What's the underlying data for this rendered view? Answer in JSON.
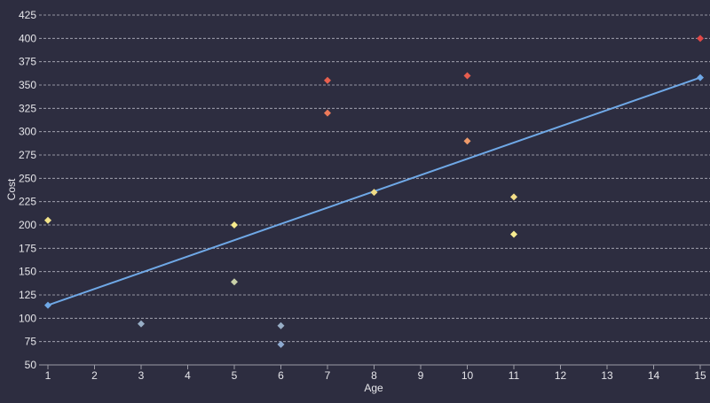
{
  "chart_data": {
    "type": "scatter",
    "title": "",
    "xlabel": "Age",
    "ylabel": "Cost",
    "xlim": [
      1,
      15
    ],
    "ylim": [
      50,
      425
    ],
    "xticks": [
      1,
      2,
      3,
      4,
      5,
      6,
      7,
      8,
      9,
      10,
      11,
      12,
      13,
      14,
      15
    ],
    "yticks": [
      50,
      75,
      100,
      125,
      150,
      175,
      200,
      225,
      250,
      275,
      300,
      325,
      350,
      375,
      400,
      425
    ],
    "grid": "horizontal dashed",
    "legend": "none",
    "points": [
      {
        "x": 1,
        "y": 205,
        "color": "#f3e48a"
      },
      {
        "x": 3,
        "y": 94,
        "color": "#98aec6"
      },
      {
        "x": 5,
        "y": 200,
        "color": "#f6ea8c"
      },
      {
        "x": 5,
        "y": 139,
        "color": "#c9d0a8"
      },
      {
        "x": 6,
        "y": 92,
        "color": "#98aec6"
      },
      {
        "x": 6,
        "y": 72,
        "color": "#8da9cf"
      },
      {
        "x": 7,
        "y": 355,
        "color": "#e8604e"
      },
      {
        "x": 7,
        "y": 320,
        "color": "#ec7a5a"
      },
      {
        "x": 8,
        "y": 235,
        "color": "#f1dc86"
      },
      {
        "x": 10,
        "y": 360,
        "color": "#e65d4e"
      },
      {
        "x": 10,
        "y": 290,
        "color": "#ee9a6a"
      },
      {
        "x": 11,
        "y": 230,
        "color": "#f3de88"
      },
      {
        "x": 11,
        "y": 190,
        "color": "#f6ec90"
      },
      {
        "x": 15,
        "y": 400,
        "color": "#e04848"
      }
    ],
    "trendline": {
      "x": [
        1,
        15
      ],
      "y": [
        114,
        358
      ],
      "color": "#6fa8e6"
    }
  }
}
